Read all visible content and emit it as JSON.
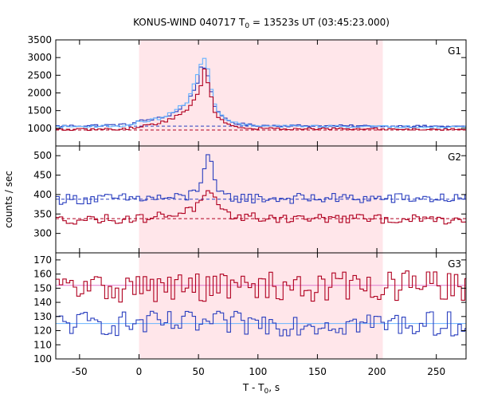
{
  "chart_data": {
    "type": "line",
    "title_main": "KONUS-WIND 040717 T",
    "title_sub": "0",
    "title_rest": " = 13523s UT (03:45:23.000)",
    "xlabel_main": "T - T",
    "xlabel_sub": "0",
    "xlabel_rest": ", s",
    "ylabel": "counts / sec",
    "xlim": [
      -70,
      275
    ],
    "xticks": [
      -50,
      0,
      50,
      100,
      150,
      200,
      250
    ],
    "interval": [
      0,
      205
    ],
    "panels": [
      {
        "label": "G1",
        "ylim": [
          500,
          3500
        ],
        "yticks": [
          500,
          1000,
          1500,
          2000,
          2500,
          3000,
          3500
        ],
        "ytick_labels_shown": [
          1000,
          1500,
          2000,
          2500,
          3000,
          3500
        ],
        "background": {
          "name": "background",
          "values": [
            1060,
            950
          ]
        }
      },
      {
        "label": "G2",
        "ylim": [
          250,
          525
        ],
        "yticks": [
          250,
          300,
          350,
          400,
          450,
          500
        ],
        "ytick_labels_shown": [
          300,
          350,
          400,
          450,
          500
        ],
        "background": {
          "name": "background",
          "values": [
            388,
            338
          ]
        }
      },
      {
        "label": "G3",
        "ylim": [
          100,
          175
        ],
        "yticks": [
          100,
          110,
          120,
          130,
          140,
          150,
          160,
          170
        ],
        "ytick_labels_shown": [
          100,
          110,
          120,
          130,
          140,
          150,
          160,
          170
        ],
        "background": {
          "name": "background",
          "values": [
            125,
            152
          ]
        }
      }
    ],
    "series": [
      {
        "name": "blue",
        "panel": 0,
        "color": "#2a3fbf",
        "x": [
          -70,
          -40,
          -10,
          0,
          10,
          20,
          30,
          40,
          45,
          50,
          53,
          56,
          59,
          62,
          65,
          70,
          80,
          90,
          100,
          150,
          200,
          275
        ],
        "y": [
          1060,
          1080,
          1100,
          1200,
          1250,
          1300,
          1450,
          1700,
          2000,
          2400,
          2800,
          2750,
          2300,
          1900,
          1500,
          1300,
          1150,
          1100,
          1080,
          1070,
          1060,
          1050
        ]
      },
      {
        "name": "light-blue",
        "panel": 0,
        "color": "#66b3ff",
        "x": [
          -70,
          -10,
          0,
          10,
          20,
          30,
          40,
          45,
          50,
          53,
          56,
          59,
          62,
          65,
          70,
          80,
          90,
          100,
          275
        ],
        "y": [
          1040,
          1070,
          1180,
          1230,
          1300,
          1480,
          1750,
          2100,
          2550,
          2950,
          3000,
          2400,
          2000,
          1550,
          1320,
          1160,
          1090,
          1060,
          1040
        ]
      },
      {
        "name": "red",
        "panel": 0,
        "color": "#b00020",
        "x": [
          -70,
          -10,
          0,
          10,
          20,
          30,
          40,
          45,
          50,
          53,
          56,
          59,
          62,
          65,
          70,
          80,
          90,
          100,
          275
        ],
        "y": [
          960,
          980,
          1050,
          1100,
          1180,
          1300,
          1500,
          1750,
          2000,
          2400,
          2750,
          2100,
          1700,
          1350,
          1200,
          1060,
          1000,
          990,
          970
        ]
      },
      {
        "name": "blue",
        "panel": 1,
        "color": "#2a3fbf",
        "x": [
          -70,
          0,
          40,
          50,
          54,
          58,
          61,
          64,
          70,
          100,
          275
        ],
        "y": [
          388,
          390,
          392,
          420,
          460,
          500,
          470,
          420,
          395,
          390,
          390
        ]
      },
      {
        "name": "red",
        "panel": 1,
        "color": "#b00020",
        "x": [
          -70,
          0,
          30,
          50,
          56,
          60,
          64,
          70,
          100,
          275
        ],
        "y": [
          335,
          338,
          350,
          370,
          395,
          405,
          380,
          350,
          340,
          335
        ]
      },
      {
        "name": "blue",
        "panel": 2,
        "color": "#2a3fbf",
        "x": [
          -70,
          275
        ],
        "y": [
          125,
          125
        ]
      },
      {
        "name": "red",
        "panel": 2,
        "color": "#b00020",
        "x": [
          -70,
          275
        ],
        "y": [
          150,
          152
        ]
      }
    ]
  }
}
